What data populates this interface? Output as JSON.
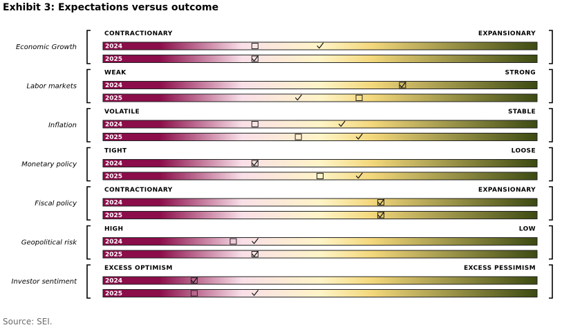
{
  "title": "Exhibit 3: Expectations versus outcome",
  "source": "Source: SEI.",
  "legend": {
    "box_icon": "square-box-icon",
    "check_icon": "check-mark-icon"
  },
  "colors": {
    "scale_left": "#8b0d4a",
    "scale_pink": "#f9dfe8",
    "scale_mid": "#fff4c7",
    "scale_yellow": "#f3d77b",
    "scale_right": "#3c4a12",
    "bracket": "#000000",
    "bar_border": "#222222"
  },
  "chart_data": {
    "type": "scale",
    "scale": [
      0,
      1
    ],
    "categories": [
      {
        "name": "Economic Growth",
        "left_label": "CONTRACTIONARY",
        "right_label": "EXPANSIONARY",
        "rows": [
          {
            "year": "2024",
            "box": 0.35,
            "check": 0.5
          },
          {
            "year": "2025",
            "box": 0.35,
            "check": 0.35
          }
        ]
      },
      {
        "name": "Labor markets",
        "left_label": "WEAK",
        "right_label": "STRONG",
        "rows": [
          {
            "year": "2024",
            "box": 0.69,
            "check": 0.69
          },
          {
            "year": "2025",
            "box": 0.59,
            "check": 0.45
          }
        ]
      },
      {
        "name": "Inflation",
        "left_label": "VOLATILE",
        "right_label": "STABLE",
        "rows": [
          {
            "year": "2024",
            "box": 0.35,
            "check": 0.55
          },
          {
            "year": "2025",
            "box": 0.45,
            "check": 0.59
          }
        ]
      },
      {
        "name": "Monetary policy",
        "left_label": "TIGHT",
        "right_label": "LOOSE",
        "rows": [
          {
            "year": "2024",
            "box": 0.35,
            "check": 0.35
          },
          {
            "year": "2025",
            "box": 0.5,
            "check": 0.59
          }
        ]
      },
      {
        "name": "Fiscal policy",
        "left_label": "CONTRACTIONARY",
        "right_label": "EXPANSIONARY",
        "rows": [
          {
            "year": "2024",
            "box": 0.64,
            "check": 0.64
          },
          {
            "year": "2025",
            "box": 0.64,
            "check": 0.64
          }
        ]
      },
      {
        "name": "Geopolitical risk",
        "left_label": "HIGH",
        "right_label": "LOW",
        "rows": [
          {
            "year": "2024",
            "box": 0.3,
            "check": 0.35
          },
          {
            "year": "2025",
            "box": 0.35,
            "check": 0.35
          }
        ]
      },
      {
        "name": "Investor sentiment",
        "left_label": "EXCESS OPTIMISM",
        "right_label": "EXCESS PESSIMISM",
        "rows": [
          {
            "year": "2024",
            "box": 0.21,
            "check": 0.21
          },
          {
            "year": "2025",
            "box": 0.21,
            "check": 0.35
          }
        ]
      }
    ]
  }
}
